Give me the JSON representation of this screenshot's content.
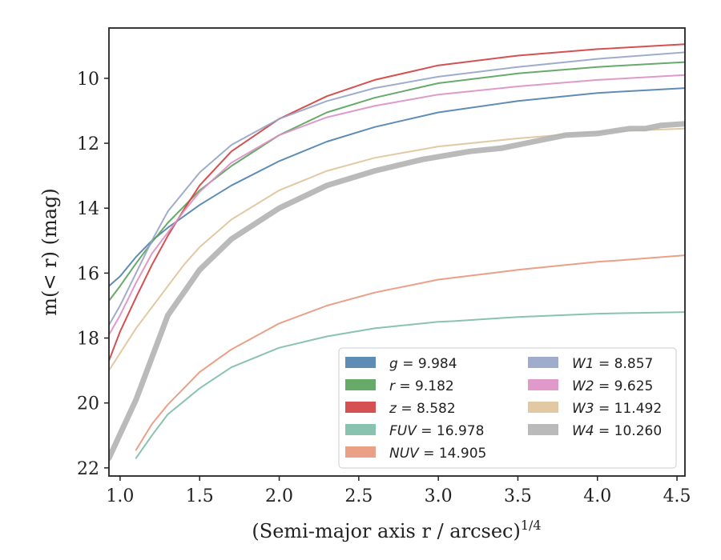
{
  "chart_data": {
    "type": "line",
    "xlabel": "(Semi-major axis r / arcsec)",
    "xlabel_sup": "1/4",
    "ylabel": "m(< r) (mag)",
    "xlim": [
      0.93,
      4.55
    ],
    "ylim": [
      22.25,
      8.45
    ],
    "y_inverted": true,
    "x_ticks": [
      1.0,
      1.5,
      2.0,
      2.5,
      3.0,
      3.5,
      4.0,
      4.5
    ],
    "x_tick_labels": [
      "1.0",
      "1.5",
      "2.0",
      "2.5",
      "3.0",
      "3.5",
      "4.0",
      "4.5"
    ],
    "y_ticks": [
      10,
      12,
      14,
      16,
      18,
      20,
      22
    ],
    "y_tick_labels": [
      "10",
      "12",
      "14",
      "16",
      "18",
      "20",
      "22"
    ],
    "grid": false,
    "legend_position": "lower-right",
    "legend_columns": 2,
    "series": [
      {
        "name": "g = 9.984",
        "label_var": "g",
        "label_val": "9.984",
        "color": "#4c7fad",
        "width": 2,
        "x": [
          0.93,
          1.0,
          1.1,
          1.2,
          1.3,
          1.4,
          1.5,
          1.7,
          2.0,
          2.3,
          2.6,
          3.0,
          3.5,
          4.0,
          4.55
        ],
        "y": [
          16.4,
          16.1,
          15.5,
          15.0,
          14.6,
          14.25,
          13.9,
          13.3,
          12.55,
          11.95,
          11.5,
          11.05,
          10.7,
          10.45,
          10.3
        ]
      },
      {
        "name": "r = 9.182",
        "label_var": "r",
        "label_val": "9.182",
        "color": "#56a15a",
        "width": 2,
        "x": [
          0.93,
          1.0,
          1.1,
          1.2,
          1.3,
          1.4,
          1.5,
          1.7,
          2.0,
          2.3,
          2.6,
          3.0,
          3.5,
          4.0,
          4.55
        ],
        "y": [
          16.85,
          16.4,
          15.7,
          15.05,
          14.45,
          13.95,
          13.45,
          12.7,
          11.75,
          11.05,
          10.6,
          10.15,
          9.85,
          9.65,
          9.5
        ]
      },
      {
        "name": "z = 8.582",
        "label_var": "z",
        "label_val": "8.582",
        "color": "#d03d3d",
        "width": 2,
        "x": [
          0.93,
          1.0,
          1.1,
          1.2,
          1.3,
          1.4,
          1.5,
          1.7,
          2.0,
          2.3,
          2.6,
          3.0,
          3.5,
          4.0,
          4.55
        ],
        "y": [
          18.7,
          17.8,
          16.75,
          15.75,
          14.85,
          14.05,
          13.3,
          12.25,
          11.25,
          10.55,
          10.05,
          9.6,
          9.3,
          9.1,
          8.95
        ]
      },
      {
        "name": "FUV = 16.978",
        "label_var": "FUV",
        "label_val": "16.978",
        "color": "#7cbca7",
        "width": 2,
        "x": [
          1.1,
          1.2,
          1.3,
          1.4,
          1.5,
          1.7,
          2.0,
          2.3,
          2.6,
          3.0,
          3.1,
          3.5,
          4.0,
          4.55
        ],
        "y": [
          21.7,
          21.0,
          20.35,
          19.95,
          19.55,
          18.9,
          18.3,
          17.95,
          17.7,
          17.5,
          17.48,
          17.35,
          17.25,
          17.2
        ]
      },
      {
        "name": "NUV = 14.905",
        "label_var": "NUV",
        "label_val": "14.905",
        "color": "#e8967a",
        "width": 2,
        "x": [
          1.1,
          1.2,
          1.3,
          1.4,
          1.5,
          1.7,
          2.0,
          2.3,
          2.6,
          3.0,
          3.5,
          4.0,
          4.1,
          4.55
        ],
        "y": [
          21.45,
          20.65,
          20.05,
          19.55,
          19.05,
          18.35,
          17.55,
          17.0,
          16.6,
          16.2,
          15.9,
          15.65,
          15.62,
          15.45
        ]
      },
      {
        "name": "W1 = 8.857",
        "label_var": "W1",
        "label_val": "8.857",
        "color": "#96a3c6",
        "width": 2,
        "x": [
          0.93,
          1.0,
          1.1,
          1.2,
          1.3,
          1.4,
          1.5,
          1.7,
          2.0,
          2.3,
          2.6,
          3.0,
          3.5,
          4.0,
          4.55
        ],
        "y": [
          17.6,
          17.0,
          16.0,
          15.0,
          14.1,
          13.5,
          12.9,
          12.05,
          11.25,
          10.7,
          10.3,
          9.95,
          9.65,
          9.4,
          9.2
        ]
      },
      {
        "name": "W2 = 9.625",
        "label_var": "W2",
        "label_val": "9.625",
        "color": "#dc8fc4",
        "width": 2,
        "x": [
          0.93,
          1.0,
          1.1,
          1.2,
          1.3,
          1.4,
          1.5,
          1.7,
          2.0,
          2.3,
          2.6,
          3.0,
          3.5,
          4.0,
          4.55
        ],
        "y": [
          17.9,
          17.3,
          16.3,
          15.4,
          14.75,
          14.1,
          13.5,
          12.6,
          11.75,
          11.2,
          10.85,
          10.5,
          10.25,
          10.05,
          9.9
        ]
      },
      {
        "name": "W3 = 11.492",
        "label_var": "W3",
        "label_val": "11.492",
        "color": "#dfc39a",
        "width": 2,
        "x": [
          0.93,
          1.1,
          1.3,
          1.4,
          1.5,
          1.7,
          2.0,
          2.3,
          2.6,
          3.0,
          3.5,
          4.0,
          4.55
        ],
        "y": [
          19.0,
          17.7,
          16.4,
          15.75,
          15.2,
          14.35,
          13.45,
          12.85,
          12.45,
          12.1,
          11.85,
          11.65,
          11.55
        ]
      },
      {
        "name": "W4 = 10.260",
        "label_var": "W4",
        "label_val": "10.260",
        "color": "#b3b3b3",
        "width": 7,
        "x": [
          0.93,
          1.1,
          1.3,
          1.4,
          1.5,
          1.7,
          2.0,
          2.3,
          2.6,
          2.9,
          3.2,
          3.4,
          3.6,
          3.8,
          4.0,
          4.2,
          4.3,
          4.4,
          4.55
        ],
        "y": [
          21.7,
          19.9,
          17.3,
          16.6,
          15.9,
          14.95,
          14.0,
          13.3,
          12.85,
          12.5,
          12.25,
          12.15,
          11.95,
          11.75,
          11.7,
          11.55,
          11.55,
          11.45,
          11.4
        ]
      }
    ]
  }
}
